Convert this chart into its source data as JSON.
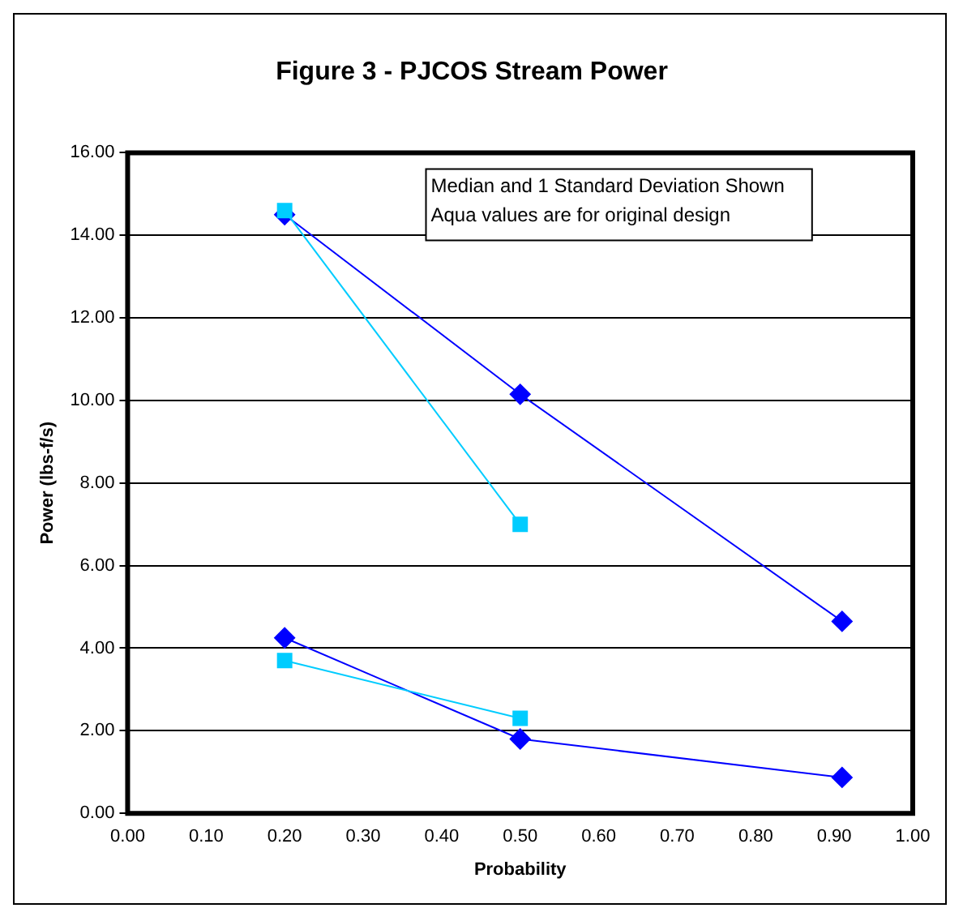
{
  "chart_data": {
    "type": "line",
    "title": "Figure 3 - PJCOS Stream Power",
    "xlabel": "Probability",
    "ylabel": "Power (lbs-f/s)",
    "annotations": [
      "Median and 1 Standard Deviation Shown",
      "Aqua values are for original design"
    ],
    "series": [
      {
        "color": "#00ccff",
        "marker": "square",
        "x": [
          0.2,
          0.5
        ],
        "values": [
          14.6,
          7.0
        ]
      },
      {
        "color": "#00ccff",
        "marker": "square",
        "x": [
          0.2,
          0.5
        ],
        "values": [
          3.7,
          2.3
        ]
      },
      {
        "color": "#0000ff",
        "marker": "diamond",
        "x": [
          0.2,
          0.5,
          0.91
        ],
        "values": [
          14.5,
          10.15,
          4.65
        ]
      },
      {
        "color": "#0000ff",
        "marker": "diamond",
        "x": [
          0.2,
          0.5,
          0.91
        ],
        "values": [
          4.25,
          1.8,
          0.87
        ]
      }
    ],
    "xlim": [
      0,
      1
    ],
    "xticks": [
      {
        "value": 0,
        "label": "0.00"
      },
      {
        "value": 0.1,
        "label": "0.10"
      },
      {
        "value": 0.2,
        "label": "0.20"
      },
      {
        "value": 0.3,
        "label": "0.30"
      },
      {
        "value": 0.4,
        "label": "0.40"
      },
      {
        "value": 0.5,
        "label": "0.50"
      },
      {
        "value": 0.6,
        "label": "0.60"
      },
      {
        "value": 0.7,
        "label": "0.70"
      },
      {
        "value": 0.8,
        "label": "0.80"
      },
      {
        "value": 0.9,
        "label": "0.90"
      },
      {
        "value": 1,
        "label": "1.00"
      }
    ],
    "ylim": [
      0,
      16
    ],
    "yticks": [
      {
        "value": 0,
        "label": "0.00"
      },
      {
        "value": 2,
        "label": "2.00"
      },
      {
        "value": 4,
        "label": "4.00"
      },
      {
        "value": 6,
        "label": "6.00"
      },
      {
        "value": 8,
        "label": "8.00"
      },
      {
        "value": 10,
        "label": "10.00"
      },
      {
        "value": 12,
        "label": "12.00"
      },
      {
        "value": 14,
        "label": "14.00"
      },
      {
        "value": 16,
        "label": "16.00"
      }
    ],
    "grid": "y",
    "legend": false,
    "line_style": "solid"
  }
}
